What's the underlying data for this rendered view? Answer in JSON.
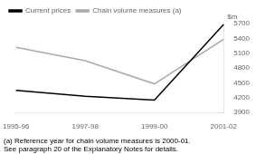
{
  "chart_data": {
    "type": "line",
    "categories": [
      "1995-96",
      "1997-98",
      "1999-00",
      "2001-02"
    ],
    "series": [
      {
        "name": "Current prices",
        "color": "#000000",
        "values": [
          4350,
          4230,
          4150,
          5680
        ]
      },
      {
        "name": "Chain volume measures (a)",
        "color": "#aaaaaa",
        "values": [
          5220,
          4950,
          4480,
          5380
        ]
      }
    ],
    "ylabel": "$m",
    "ylim": [
      3900,
      5700
    ],
    "yticks": [
      3900,
      4200,
      4500,
      4800,
      5100,
      5400,
      5700
    ],
    "annotations": [
      "(a) Reference year for chain volume measures is 2000-01.",
      "See paragraph 20 of the Explanatory Notes for details."
    ],
    "grid": false,
    "legend": "top"
  }
}
